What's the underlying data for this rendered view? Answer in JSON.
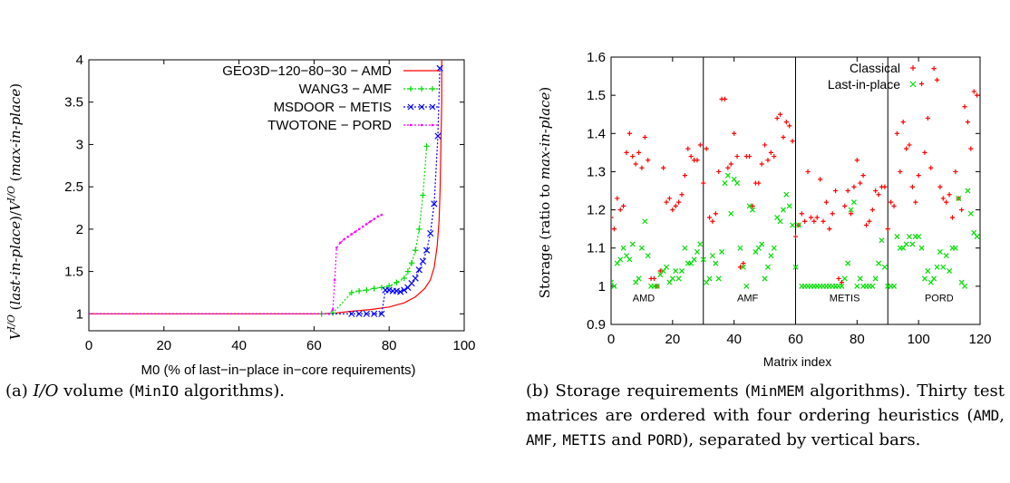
{
  "chart_data": [
    {
      "type": "line",
      "xlabel": "M0 (% of last−in−place in−core requirements)",
      "ylabel_parts": [
        "V",
        "I/O",
        " (",
        "last-in-place",
        ")/",
        "V",
        "I/O",
        " (",
        "max-in-place",
        ")"
      ],
      "xlim": [
        0,
        100
      ],
      "ylim": [
        0.8,
        4
      ],
      "xticks": [
        0,
        20,
        40,
        60,
        80,
        100
      ],
      "yticks": [
        1,
        1.5,
        2,
        2.5,
        3,
        3.5,
        4
      ],
      "legend_position": "top-right",
      "series": [
        {
          "name": "GEO3D−120−80−30 − AMD",
          "color": "#ff0000",
          "style": "solid",
          "marker": "none",
          "x": [
            0,
            62,
            66,
            70,
            75,
            80,
            84,
            87,
            89.5,
            91,
            92,
            92.8,
            93.3,
            93.6,
            93.8,
            94,
            94,
            94
          ],
          "y": [
            1,
            1,
            1.01,
            1.03,
            1.05,
            1.08,
            1.13,
            1.2,
            1.3,
            1.4,
            1.55,
            1.8,
            2.1,
            2.5,
            3,
            3.5,
            3.9,
            4
          ]
        },
        {
          "name": "WANG3 − AMF",
          "color": "#00dd00",
          "style": "dotted",
          "marker": "plus",
          "x": [
            0,
            62,
            65,
            70,
            72,
            74,
            76,
            78,
            80,
            82,
            84,
            85,
            86,
            87,
            88,
            89,
            90
          ],
          "y": [
            1,
            1,
            1.01,
            1.25,
            1.27,
            1.28,
            1.3,
            1.31,
            1.33,
            1.37,
            1.42,
            1.5,
            1.6,
            1.75,
            2.0,
            2.4,
            2.98
          ]
        },
        {
          "name": "MSDOOR − METIS",
          "color": "#0000ff",
          "style": "dotted",
          "marker": "x",
          "x": [
            0,
            70,
            72,
            74,
            76,
            78,
            79,
            80,
            81,
            82,
            83,
            84,
            85,
            86,
            87,
            88,
            89,
            90,
            91,
            92,
            93,
            93.5
          ],
          "y": [
            1,
            1,
            1,
            1,
            1,
            1,
            1.28,
            1.28,
            1.27,
            1.27,
            1.26,
            1.28,
            1.31,
            1.36,
            1.42,
            1.52,
            1.62,
            1.75,
            1.95,
            2.3,
            3.1,
            3.9
          ]
        },
        {
          "name": "TWOTONE − PORD",
          "color": "#ff00ff",
          "style": "dotted",
          "marker": "dot",
          "x": [
            0,
            64,
            65,
            65.5,
            66,
            67,
            68,
            69,
            70,
            71,
            72,
            73,
            74,
            75,
            76,
            77,
            78
          ],
          "y": [
            1,
            1,
            1.05,
            1.4,
            1.78,
            1.84,
            1.88,
            1.91,
            1.94,
            1.97,
            2.0,
            2.03,
            2.06,
            2.09,
            2.12,
            2.15,
            2.17
          ]
        }
      ]
    },
    {
      "type": "scatter",
      "xlabel": "Matrix index",
      "ylabel_parts": [
        "Storage (ratio to ",
        "max-in-place",
        ")"
      ],
      "xlim": [
        0,
        120
      ],
      "ylim": [
        0.9,
        1.6
      ],
      "xticks": [
        0,
        20,
        40,
        60,
        80,
        100,
        120
      ],
      "yticks": [
        0.9,
        1,
        1.1,
        1.2,
        1.3,
        1.4,
        1.5,
        1.6
      ],
      "separators": [
        30,
        60,
        90
      ],
      "groups": [
        {
          "label": "AMD",
          "x": 7
        },
        {
          "label": "AMF",
          "x": 41
        },
        {
          "label": "METIS",
          "x": 71
        },
        {
          "label": "PORD",
          "x": 102
        }
      ],
      "legend_position": "top-right",
      "series": [
        {
          "name": "Classical",
          "color": "#ff0000",
          "marker": "plus",
          "x": [
            0,
            1,
            2,
            3,
            4,
            5,
            6,
            7,
            8,
            9,
            10,
            11,
            12,
            13,
            14,
            15,
            16,
            17,
            18,
            19,
            20,
            21,
            22,
            23,
            24,
            25,
            26,
            27,
            28,
            29,
            30,
            31,
            32,
            33,
            34,
            35,
            36,
            37,
            38,
            39,
            40,
            41,
            42,
            43,
            44,
            45,
            46,
            47,
            48,
            49,
            50,
            51,
            52,
            53,
            54,
            55,
            56,
            57,
            58,
            59,
            60,
            61,
            62,
            63,
            64,
            65,
            66,
            67,
            68,
            69,
            70,
            71,
            72,
            73,
            74,
            75,
            76,
            77,
            78,
            79,
            80,
            81,
            82,
            83,
            84,
            85,
            86,
            87,
            88,
            89,
            90,
            91,
            92,
            93,
            94,
            95,
            96,
            97,
            98,
            99,
            100,
            101,
            102,
            103,
            104,
            105,
            106,
            107,
            108,
            109,
            110,
            111,
            112,
            113,
            114,
            115,
            116,
            117,
            118,
            119
          ],
          "y": [
            1.18,
            1.15,
            1.23,
            1.2,
            1.21,
            1.35,
            1.4,
            1.34,
            1.32,
            1.35,
            1.31,
            1.39,
            1.33,
            1.02,
            1.02,
            1.0,
            1.04,
            1.31,
            1.22,
            1.23,
            1.2,
            1.21,
            1.22,
            1.24,
            1.29,
            1.36,
            1.34,
            1.33,
            1.33,
            1.37,
            1.27,
            1.36,
            1.18,
            1.17,
            1.19,
            1.3,
            1.49,
            1.49,
            1.31,
            1.32,
            1.4,
            1.34,
            1.05,
            1.06,
            1.34,
            1.34,
            1.21,
            1.27,
            1.27,
            1.32,
            1.37,
            1.33,
            1.35,
            1.34,
            1.44,
            1.45,
            1.39,
            1.43,
            1.42,
            1.38,
            1.13,
            1.16,
            1.19,
            1.17,
            1.3,
            1.18,
            1.17,
            1.18,
            1.28,
            1.17,
            1.22,
            1.15,
            1.19,
            1.25,
            1.02,
            1.01,
            1.21,
            1.25,
            1.19,
            1.26,
            1.33,
            1.27,
            1.29,
            1.16,
            1.17,
            1.2,
            1.25,
            1.24,
            1.26,
            1.26,
            1.15,
            1.22,
            1.21,
            1.4,
            1.3,
            1.43,
            1.36,
            1.37,
            1.26,
            1.22,
            1.29,
            1.53,
            1.35,
            1.44,
            1.31,
            1.57,
            1.54,
            1.26,
            1.23,
            1.22,
            1.24,
            1.18,
            1.3,
            1.23,
            1.2,
            1.47,
            1.43,
            1.36,
            1.51,
            1.5
          ]
        },
        {
          "name": "Last-in-place",
          "color": "#00dd00",
          "marker": "x",
          "x": [
            0,
            1,
            2,
            3,
            4,
            5,
            6,
            7,
            8,
            9,
            10,
            11,
            12,
            13,
            14,
            15,
            16,
            17,
            18,
            19,
            20,
            21,
            22,
            23,
            24,
            25,
            26,
            27,
            28,
            29,
            30,
            31,
            32,
            33,
            34,
            35,
            36,
            37,
            38,
            39,
            40,
            41,
            42,
            43,
            44,
            45,
            46,
            47,
            48,
            49,
            50,
            51,
            52,
            53,
            54,
            55,
            56,
            57,
            58,
            59,
            60,
            61,
            62,
            63,
            64,
            65,
            66,
            67,
            68,
            69,
            70,
            71,
            72,
            73,
            74,
            75,
            76,
            77,
            78,
            79,
            80,
            81,
            82,
            83,
            84,
            85,
            86,
            87,
            88,
            89,
            90,
            91,
            92,
            93,
            94,
            95,
            96,
            97,
            98,
            99,
            100,
            101,
            102,
            103,
            104,
            105,
            106,
            107,
            108,
            109,
            110,
            111,
            112,
            113,
            114,
            115,
            116,
            117,
            118,
            119
          ],
          "y": [
            1.01,
            1.0,
            1.06,
            1.07,
            1.1,
            1.08,
            1.07,
            1.11,
            1.01,
            1.02,
            1.1,
            1.17,
            1.08,
            1.0,
            1.0,
            1.0,
            1.03,
            1.04,
            1.05,
            1.01,
            1.02,
            1.04,
            1.02,
            1.04,
            1.1,
            1.06,
            1.06,
            1.07,
            1.09,
            1.11,
            1.07,
            1.01,
            1.02,
            1.08,
            1.06,
            1.02,
            1.09,
            1.27,
            1.29,
            1.19,
            1.28,
            1.27,
            1.1,
            1.05,
            1.0,
            1.21,
            1.2,
            1.09,
            1.1,
            1.11,
            1.02,
            1.05,
            1.08,
            1.1,
            1.18,
            1.17,
            1.2,
            1.24,
            1.21,
            1.16,
            1.05,
            1.16,
            1.0,
            1.0,
            1.0,
            1.0,
            1.0,
            1.0,
            1.0,
            1.0,
            1.0,
            1.0,
            1.0,
            1.0,
            1.0,
            1.0,
            1.02,
            1.06,
            1.2,
            1.22,
            1.0,
            1.02,
            1.0,
            1.0,
            1.0,
            1.0,
            1.02,
            1.06,
            1.12,
            1.05,
            1.0,
            1.0,
            1.0,
            1.13,
            1.1,
            1.1,
            1.11,
            1.13,
            1.11,
            1.13,
            1.13,
            1.1,
            1.02,
            1.04,
            1.01,
            1.02,
            1.05,
            1.09,
            1.05,
            1.08,
            1.04,
            1.1,
            1.1,
            1.23,
            1.01,
            1.0,
            1.25,
            1.19,
            1.14,
            1.13
          ]
        }
      ]
    }
  ],
  "captions": {
    "a": {
      "tag": "(a) ",
      "italic": "I/O",
      "text1": " volume (",
      "mono": "MinIO",
      "text2": " algorithms)."
    },
    "b": {
      "tag": "(b) Storage requirements (",
      "mono1": "MinMEM",
      "text1": " algorithms). Thirty test matrices are ordered with four ordering heuristics (",
      "mono2": "AMD",
      "sep1": ", ",
      "mono3": "AMF",
      "sep2": ", ",
      "mono4": "METIS",
      "sep3": " and ",
      "mono5": "PORD",
      "text2": "), separated by vertical bars."
    }
  }
}
